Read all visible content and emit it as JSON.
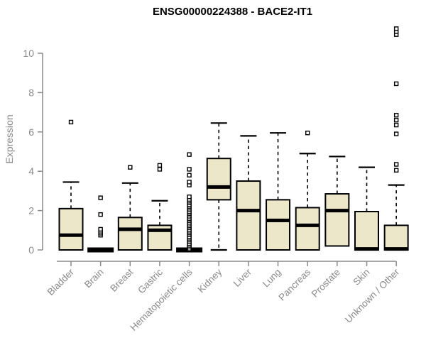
{
  "title": "ENSG00000224388 - BACE2-IT1",
  "chart_data": {
    "type": "boxplot",
    "title": "ENSG00000224388 - BACE2-IT1",
    "ylabel": "Expression",
    "xlabel": "",
    "ylim": [
      0,
      10
    ],
    "yticks": [
      0,
      2,
      4,
      6,
      8,
      10
    ],
    "grid": false,
    "legend": "none",
    "categories": [
      "Bladder",
      "Brain",
      "Breast",
      "Gastric",
      "Hematopoietic cells",
      "Kidney",
      "Liver",
      "Lung",
      "Pancreas",
      "Prostate",
      "Skin",
      "Unknown / Other"
    ],
    "series": [
      {
        "category": "Bladder",
        "low": 0,
        "q1": 0,
        "median": 0.75,
        "q3": 2.1,
        "high": 3.45,
        "outliers": [
          6.5
        ],
        "collapsed": false
      },
      {
        "category": "Brain",
        "low": 0,
        "q1": 0,
        "median": 0,
        "q3": 0,
        "high": 0,
        "outliers": [
          0.75,
          0.85,
          0.95,
          1.05,
          1.8,
          2.65
        ],
        "collapsed": true
      },
      {
        "category": "Breast",
        "low": 0,
        "q1": 0,
        "median": 1.05,
        "q3": 1.65,
        "high": 3.4,
        "outliers": [
          4.2
        ],
        "collapsed": false
      },
      {
        "category": "Gastric",
        "low": 0,
        "q1": 0,
        "median": 1.0,
        "q3": 1.25,
        "high": 2.5,
        "outliers": [
          4.1,
          4.3
        ],
        "collapsed": false
      },
      {
        "category": "Hematopoietic cells",
        "low": 0,
        "q1": 0,
        "median": 0,
        "q3": 0,
        "high": 0,
        "outliers": [
          0.05,
          0.14,
          0.23,
          0.32,
          0.41,
          0.5,
          0.59,
          0.68,
          0.77,
          0.86,
          0.95,
          1.04,
          1.13,
          1.22,
          1.31,
          1.4,
          1.49,
          1.58,
          1.67,
          1.76,
          1.85,
          1.94,
          2.03,
          2.12,
          2.21,
          2.3,
          2.39,
          2.48,
          2.57,
          2.7,
          3.3,
          3.45,
          3.8,
          4.1,
          4.85
        ],
        "collapsed": true
      },
      {
        "category": "Kidney",
        "low": 0,
        "q1": 2.55,
        "median": 3.2,
        "q3": 4.65,
        "high": 6.45,
        "outliers": [],
        "collapsed": false
      },
      {
        "category": "Liver",
        "low": 0,
        "q1": 0,
        "median": 2.0,
        "q3": 3.5,
        "high": 5.8,
        "outliers": [],
        "collapsed": false
      },
      {
        "category": "Lung",
        "low": 0,
        "q1": 0,
        "median": 1.5,
        "q3": 2.55,
        "high": 5.95,
        "outliers": [],
        "collapsed": false
      },
      {
        "category": "Pancreas",
        "low": 0,
        "q1": 0,
        "median": 1.25,
        "q3": 2.15,
        "high": 4.9,
        "outliers": [
          5.95
        ],
        "collapsed": false
      },
      {
        "category": "Prostate",
        "low": 0.2,
        "q1": 0.2,
        "median": 2.0,
        "q3": 2.85,
        "high": 4.75,
        "outliers": [],
        "collapsed": false
      },
      {
        "category": "Skin",
        "low": 0,
        "q1": 0,
        "median": 0.05,
        "q3": 1.95,
        "high": 4.2,
        "outliers": [],
        "collapsed": false
      },
      {
        "category": "Unknown / Other",
        "low": 0,
        "q1": 0,
        "median": 0.05,
        "q3": 1.25,
        "high": 3.3,
        "outliers": [
          4.05,
          4.35,
          5.9,
          6.35,
          6.6,
          6.85,
          8.45,
          10.95,
          11.1,
          11.25
        ],
        "collapsed": false
      }
    ],
    "colors": {
      "box_fill": "#EDE7CA",
      "box_stroke": "#000000",
      "median": "#000000",
      "whisker": "#000000",
      "outlier_fill": "#FFFFFF",
      "axis": "#8A8A8A",
      "title": "#000000",
      "background": "#FFFFFF"
    }
  }
}
